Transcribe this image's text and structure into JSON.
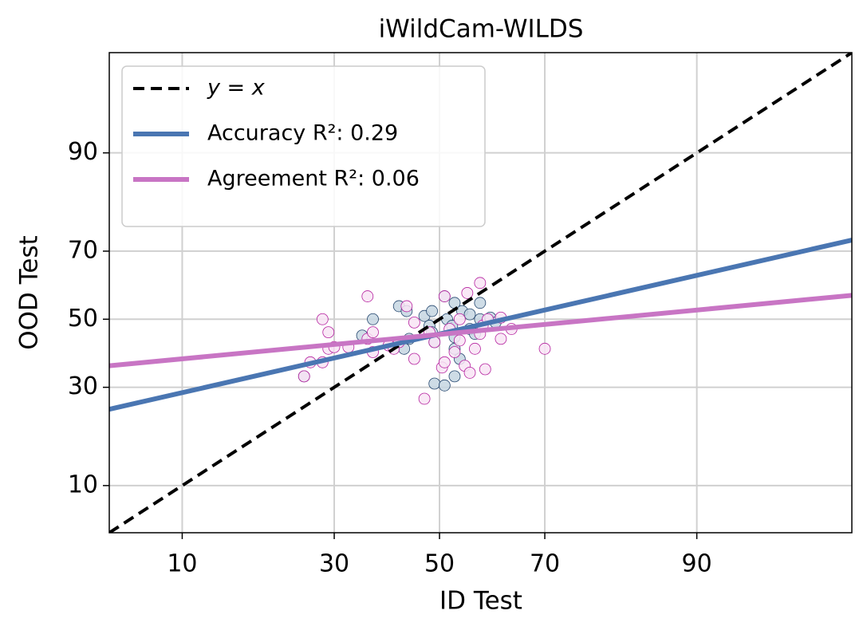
{
  "chart_data": {
    "type": "scatter",
    "title": "iWildCam-WILDS",
    "x_label": "ID Test",
    "y_label": "OOD Test",
    "xscale": "probit",
    "yscale": "probit",
    "grid": true,
    "legend_position": "upper left",
    "xlim": [
      5,
      98
    ],
    "ylim": [
      5,
      98
    ],
    "xticks": [
      10,
      30,
      50,
      70,
      90
    ],
    "yticks": [
      10,
      30,
      50,
      70,
      90
    ],
    "series": [
      {
        "type": "scatter",
        "color": "#c5d6e2",
        "edgecolor": "#24466e",
        "x": [
          25,
          35,
          37,
          42,
          43.5,
          43,
          44,
          47,
          48,
          48.5,
          49,
          49,
          51,
          51,
          51.5,
          52.5,
          53,
          53,
          53,
          54,
          54.5,
          56,
          57,
          58,
          58,
          60,
          61,
          48.5,
          56,
          53
        ],
        "values": [
          33,
          45,
          50,
          54,
          52.5,
          41,
          44,
          51,
          48,
          46,
          43,
          31,
          30.5,
          57,
          50,
          48,
          44.5,
          41,
          33,
          38,
          52.5,
          47,
          45.5,
          55,
          50,
          50.5,
          49,
          52.5,
          51.5,
          55
        ]
      },
      {
        "type": "scatter",
        "color": "#f8e4f4",
        "edgecolor": "#b5219f",
        "x": [
          25,
          26,
          28,
          28,
          29,
          29,
          30,
          32.5,
          36,
          36,
          37,
          37,
          40,
          41,
          42,
          43.5,
          45,
          45,
          47,
          48,
          49,
          50.5,
          51,
          51,
          52,
          53,
          54,
          55,
          55.5,
          56,
          58,
          58,
          58.5,
          59,
          59.5,
          62,
          62,
          64,
          70,
          57,
          54
        ],
        "values": [
          33,
          37,
          37,
          50,
          46,
          41,
          41.5,
          41.5,
          57,
          44,
          46,
          40,
          42,
          41,
          43,
          54,
          49,
          38,
          27,
          46,
          43,
          35.5,
          57,
          37,
          47,
          40,
          43.5,
          36,
          58,
          34,
          61,
          45.5,
          48,
          35,
          50,
          50.5,
          44,
          47,
          41,
          41,
          50
        ]
      },
      {
        "type": "line",
        "name": "y = x",
        "color": "#000000",
        "dashed": true,
        "x": [
          5,
          98
        ],
        "values": [
          5,
          98
        ]
      },
      {
        "type": "line",
        "name": "Accuracy R²: 0.29",
        "color": "#4a76b2",
        "x": [
          5,
          98
        ],
        "values": [
          24.4,
          72.9
        ]
      },
      {
        "type": "line",
        "name": "Agreement R²: 0.06",
        "color": "#c875c4",
        "x": [
          5,
          98
        ],
        "values": [
          36.0,
          57.3
        ]
      }
    ]
  }
}
